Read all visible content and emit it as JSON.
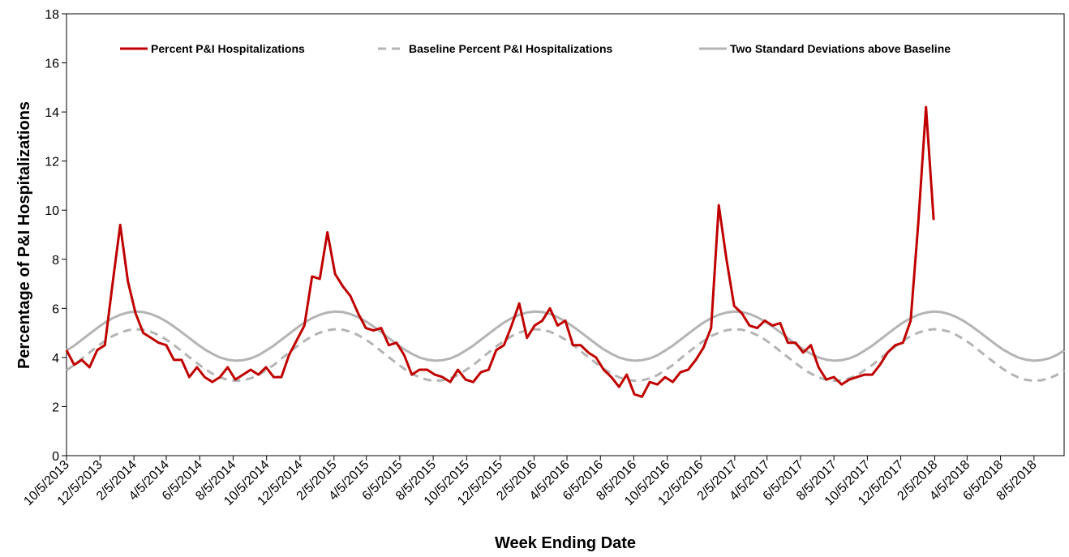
{
  "chart_data": {
    "type": "line",
    "x_label": "Week Ending Date",
    "y_label": "Percentage of P&I Hospitalizations",
    "legend": "top",
    "grid": false,
    "ylim": [
      0,
      18
    ],
    "yticks": [
      0,
      2,
      4,
      6,
      8,
      10,
      12,
      14,
      16,
      18
    ],
    "xlim": [
      "10/5/2013",
      "9/29/2018"
    ],
    "xticks": [
      "10/5/2013",
      "12/5/2013",
      "2/5/2014",
      "4/5/2014",
      "6/5/2014",
      "8/5/2014",
      "10/5/2014",
      "12/5/2014",
      "2/5/2015",
      "4/5/2015",
      "6/5/2015",
      "8/5/2015",
      "10/5/2015",
      "12/5/2015",
      "2/5/2016",
      "4/5/2016",
      "6/5/2016",
      "8/5/2016",
      "10/5/2016",
      "12/5/2016",
      "2/5/2017",
      "4/5/2017",
      "6/5/2017",
      "8/5/2017",
      "10/5/2017",
      "12/5/2017",
      "2/5/2018",
      "4/5/2018",
      "6/5/2018",
      "8/5/2018"
    ],
    "x": [
      "10/5/2013",
      "10/19/2013",
      "11/2/2013",
      "11/16/2013",
      "11/30/2013",
      "12/14/2013",
      "12/28/2013",
      "1/11/2014",
      "1/25/2014",
      "2/8/2014",
      "2/22/2014",
      "3/8/2014",
      "3/22/2014",
      "4/5/2014",
      "4/19/2014",
      "5/3/2014",
      "5/17/2014",
      "5/31/2014",
      "6/14/2014",
      "6/28/2014",
      "7/12/2014",
      "7/26/2014",
      "8/9/2014",
      "8/23/2014",
      "9/6/2014",
      "9/20/2014",
      "10/4/2014",
      "10/18/2014",
      "11/1/2014",
      "11/15/2014",
      "11/29/2014",
      "12/13/2014",
      "12/27/2014",
      "1/10/2015",
      "1/24/2015",
      "2/7/2015",
      "2/21/2015",
      "3/7/2015",
      "3/21/2015",
      "4/4/2015",
      "4/18/2015",
      "5/2/2015",
      "5/16/2015",
      "5/30/2015",
      "6/13/2015",
      "6/27/2015",
      "7/11/2015",
      "7/25/2015",
      "8/8/2015",
      "8/22/2015",
      "9/5/2015",
      "9/19/2015",
      "10/3/2015",
      "10/17/2015",
      "10/31/2015",
      "11/14/2015",
      "11/28/2015",
      "12/12/2015",
      "12/26/2015",
      "1/9/2016",
      "1/23/2016",
      "2/6/2016",
      "2/20/2016",
      "3/5/2016",
      "3/19/2016",
      "4/2/2016",
      "4/16/2016",
      "4/30/2016",
      "5/14/2016",
      "5/28/2016",
      "6/11/2016",
      "6/25/2016",
      "7/9/2016",
      "7/23/2016",
      "8/6/2016",
      "8/20/2016",
      "9/3/2016",
      "9/17/2016",
      "10/1/2016",
      "10/15/2016",
      "10/29/2016",
      "11/12/2016",
      "11/26/2016",
      "12/10/2016",
      "12/24/2016",
      "1/7/2017",
      "1/21/2017",
      "2/4/2017",
      "2/18/2017",
      "3/4/2017",
      "3/18/2017",
      "4/1/2017",
      "4/15/2017",
      "4/29/2017",
      "5/13/2017",
      "5/27/2017",
      "6/10/2017",
      "6/24/2017",
      "7/8/2017",
      "7/22/2017",
      "8/5/2017",
      "8/19/2017",
      "9/2/2017",
      "9/16/2017",
      "9/30/2017",
      "10/14/2017",
      "10/28/2017",
      "11/11/2017",
      "11/25/2017",
      "12/9/2017",
      "12/23/2017",
      "1/6/2018",
      "1/20/2018",
      "2/3/2018",
      "2/17/2018",
      "3/3/2018",
      "3/17/2018",
      "3/31/2018",
      "4/14/2018",
      "4/28/2018",
      "5/12/2018",
      "5/26/2018",
      "6/9/2018",
      "6/23/2018",
      "7/7/2018",
      "7/21/2018",
      "8/4/2018",
      "8/18/2018",
      "9/1/2018",
      "9/15/2018",
      "9/29/2018"
    ],
    "series": [
      {
        "name": "Percent P&I Hospitalizations",
        "color": "#c00000",
        "dash": false,
        "values": [
          4.3,
          3.7,
          3.9,
          3.6,
          4.3,
          4.5,
          7.0,
          9.4,
          7.1,
          5.8,
          5.0,
          4.8,
          4.6,
          4.5,
          3.9,
          3.9,
          3.2,
          3.6,
          3.2,
          3.0,
          3.2,
          3.6,
          3.1,
          3.3,
          3.5,
          3.3,
          3.6,
          3.2,
          3.2,
          4.1,
          4.7,
          5.3,
          7.3,
          7.2,
          9.1,
          7.4,
          6.9,
          6.5,
          5.8,
          5.2,
          5.1,
          5.2,
          4.5,
          4.6,
          4.1,
          3.3,
          3.5,
          3.5,
          3.3,
          3.2,
          3.0,
          3.5,
          3.1,
          3.0,
          3.4,
          3.5,
          4.3,
          4.5,
          5.3,
          6.2,
          4.8,
          5.3,
          5.5,
          6.0,
          5.3,
          5.5,
          4.5,
          4.5,
          4.2,
          4.0,
          3.5,
          3.2,
          2.8,
          3.3,
          2.5,
          2.4,
          3.0,
          2.9,
          3.2,
          3.0,
          3.4,
          3.5,
          3.9,
          4.4,
          5.2,
          10.2,
          8.0,
          6.1,
          5.8,
          5.3,
          5.2,
          5.5,
          5.3,
          5.4,
          4.6,
          4.6,
          4.2,
          4.5,
          3.6,
          3.1,
          3.2,
          2.9,
          3.1,
          3.2,
          3.3,
          3.3,
          3.7,
          4.2,
          4.5,
          4.6,
          5.5,
          9.5,
          14.2,
          9.6,
          null,
          null,
          null,
          null,
          null,
          null,
          null,
          null,
          null,
          null,
          null,
          null,
          null,
          null,
          null,
          null,
          null
        ]
      },
      {
        "name": "Baseline Percent P&I Hospitalizations",
        "color": "#b4b4b4",
        "dash": true,
        "values": [
          3.48,
          3.69,
          3.95,
          4.2,
          4.45,
          4.67,
          4.87,
          5.01,
          5.11,
          5.15,
          5.13,
          5.05,
          4.91,
          4.73,
          4.51,
          4.26,
          4.01,
          3.77,
          3.54,
          3.34,
          3.19,
          3.09,
          3.05,
          3.07,
          3.15,
          3.28,
          3.48,
          3.69,
          3.95,
          4.2,
          4.45,
          4.67,
          4.87,
          5.01,
          5.11,
          5.15,
          5.13,
          5.05,
          4.91,
          4.73,
          4.51,
          4.26,
          4.01,
          3.77,
          3.54,
          3.34,
          3.19,
          3.09,
          3.05,
          3.07,
          3.15,
          3.28,
          3.48,
          3.69,
          3.95,
          4.2,
          4.45,
          4.67,
          4.87,
          5.01,
          5.11,
          5.15,
          5.13,
          5.05,
          4.91,
          4.73,
          4.51,
          4.26,
          4.01,
          3.77,
          3.54,
          3.34,
          3.19,
          3.09,
          3.05,
          3.07,
          3.15,
          3.28,
          3.48,
          3.69,
          3.95,
          4.2,
          4.45,
          4.67,
          4.87,
          5.01,
          5.11,
          5.15,
          5.13,
          5.05,
          4.91,
          4.73,
          4.51,
          4.26,
          4.01,
          3.77,
          3.54,
          3.34,
          3.19,
          3.09,
          3.05,
          3.07,
          3.15,
          3.28,
          3.48,
          3.69,
          3.95,
          4.2,
          4.45,
          4.67,
          4.87,
          5.01,
          5.11,
          5.15,
          5.13,
          5.05,
          4.91,
          4.73,
          4.51,
          4.26,
          4.01,
          3.77,
          3.54,
          3.34,
          3.19,
          3.09,
          3.05,
          3.07,
          3.15,
          3.28,
          3.48
        ]
      },
      {
        "name": "Two Standard Deviations above Baseline",
        "color": "#b4b4b4",
        "dash": false,
        "values": [
          4.28,
          4.48,
          4.72,
          4.96,
          5.2,
          5.42,
          5.6,
          5.74,
          5.83,
          5.87,
          5.85,
          5.77,
          5.64,
          5.47,
          5.26,
          5.03,
          4.79,
          4.55,
          4.33,
          4.15,
          4.0,
          3.91,
          3.87,
          3.89,
          3.96,
          4.09,
          4.28,
          4.48,
          4.72,
          4.96,
          5.2,
          5.42,
          5.6,
          5.74,
          5.83,
          5.87,
          5.85,
          5.77,
          5.64,
          5.47,
          5.26,
          5.03,
          4.79,
          4.55,
          4.33,
          4.15,
          4.0,
          3.91,
          3.87,
          3.89,
          3.96,
          4.09,
          4.28,
          4.48,
          4.72,
          4.96,
          5.2,
          5.42,
          5.6,
          5.74,
          5.83,
          5.87,
          5.85,
          5.77,
          5.64,
          5.47,
          5.26,
          5.03,
          4.79,
          4.55,
          4.33,
          4.15,
          4.0,
          3.91,
          3.87,
          3.89,
          3.96,
          4.09,
          4.28,
          4.48,
          4.72,
          4.96,
          5.2,
          5.42,
          5.6,
          5.74,
          5.83,
          5.87,
          5.85,
          5.77,
          5.64,
          5.47,
          5.26,
          5.03,
          4.79,
          4.55,
          4.33,
          4.15,
          4.0,
          3.91,
          3.87,
          3.89,
          3.96,
          4.09,
          4.28,
          4.48,
          4.72,
          4.96,
          5.2,
          5.42,
          5.6,
          5.74,
          5.83,
          5.87,
          5.85,
          5.77,
          5.64,
          5.47,
          5.26,
          5.03,
          4.79,
          4.55,
          4.33,
          4.15,
          4.0,
          3.91,
          3.87,
          3.89,
          3.96,
          4.09,
          4.28
        ]
      }
    ]
  }
}
